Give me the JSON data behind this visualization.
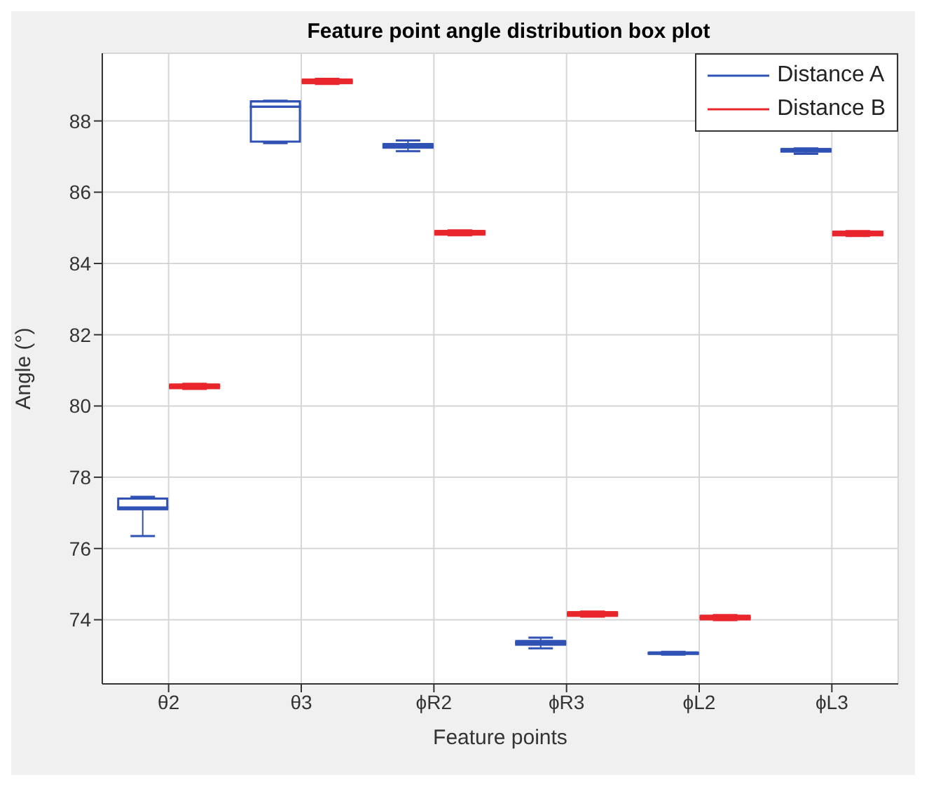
{
  "chart_data": {
    "type": "box",
    "title": "Feature point angle distribution box plot",
    "xlabel": "Feature points",
    "ylabel": "Angle (°)",
    "categories": [
      "θ2",
      "θ3",
      "ϕR2",
      "ϕR3",
      "ϕL2",
      "ϕL3"
    ],
    "ylim": [
      72.2,
      89.9
    ],
    "yticks": [
      74,
      76,
      78,
      80,
      82,
      84,
      86,
      88
    ],
    "grid": true,
    "legend": "top right",
    "series": [
      {
        "name": "Distance A",
        "color": "#2f52b4",
        "boxes": [
          {
            "low": 76.35,
            "q1": 77.1,
            "median": 77.15,
            "q3": 77.4,
            "high": 77.45
          },
          {
            "low": 87.38,
            "q1": 87.42,
            "median": 88.4,
            "q3": 88.55,
            "high": 88.57
          },
          {
            "low": 87.15,
            "q1": 87.25,
            "median": 87.3,
            "q3": 87.35,
            "high": 87.45
          },
          {
            "low": 73.2,
            "q1": 73.3,
            "median": 73.35,
            "q3": 73.4,
            "high": 73.5
          },
          {
            "low": 73.02,
            "q1": 73.04,
            "median": 73.06,
            "q3": 73.08,
            "high": 73.1
          },
          {
            "low": 87.08,
            "q1": 87.14,
            "median": 87.18,
            "q3": 87.21,
            "high": 87.23
          }
        ]
      },
      {
        "name": "Distance B",
        "color": "#e8262c",
        "boxes": [
          {
            "low": 80.48,
            "q1": 80.5,
            "median": 80.55,
            "q3": 80.6,
            "high": 80.62
          },
          {
            "low": 89.04,
            "q1": 89.06,
            "median": 89.11,
            "q3": 89.16,
            "high": 89.18
          },
          {
            "low": 84.79,
            "q1": 84.81,
            "median": 84.86,
            "q3": 84.91,
            "high": 84.93
          },
          {
            "low": 74.09,
            "q1": 74.11,
            "median": 74.16,
            "q3": 74.21,
            "high": 74.23
          },
          {
            "low": 73.99,
            "q1": 74.01,
            "median": 74.06,
            "q3": 74.11,
            "high": 74.13
          },
          {
            "low": 84.77,
            "q1": 84.79,
            "median": 84.84,
            "q3": 84.89,
            "high": 84.91
          }
        ]
      }
    ]
  }
}
